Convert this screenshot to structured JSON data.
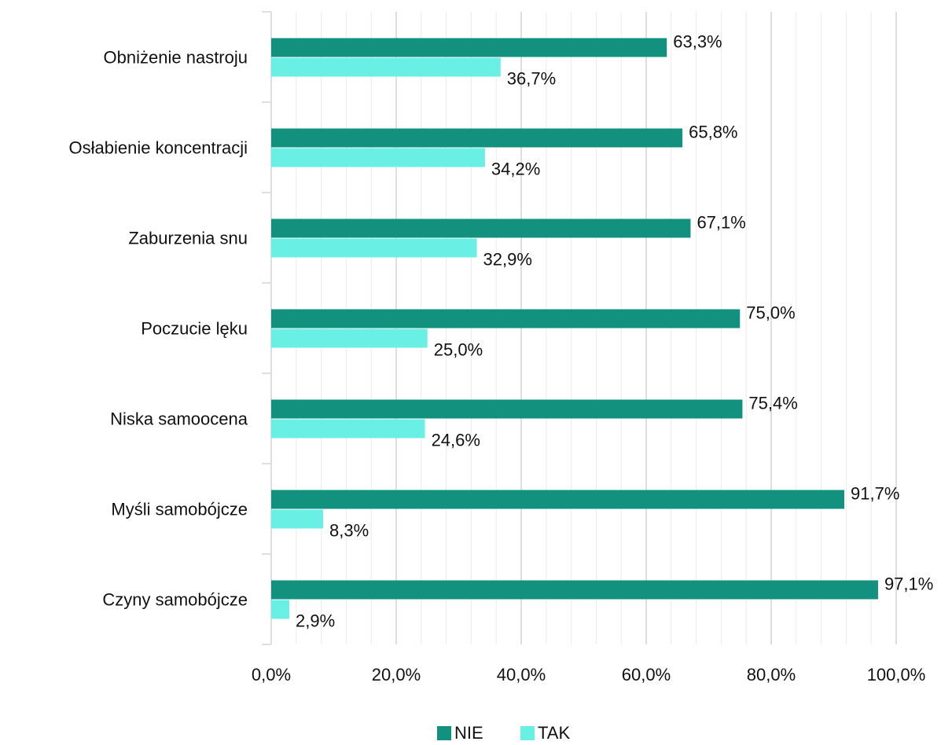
{
  "chart_data": {
    "type": "hbar",
    "categories": [
      "Obniżenie nastroju",
      "Osłabienie koncentracji",
      "Zaburzenia snu",
      "Poczucie lęku",
      "Niska samoocena",
      "Myśli samobójcze",
      "Czyny samobójcze"
    ],
    "series": [
      {
        "name": "NIE",
        "color": "#12917f",
        "values": [
          63.3,
          65.8,
          67.1,
          75.0,
          75.4,
          91.7,
          97.1
        ],
        "value_labels": [
          "63,3%",
          "65,8%",
          "67,1%",
          "75,0%",
          "75,4%",
          "91,7%",
          "97,1%"
        ]
      },
      {
        "name": "TAK",
        "color": "#6aefe4",
        "values": [
          36.7,
          34.2,
          32.9,
          25.0,
          24.6,
          8.3,
          2.9
        ],
        "value_labels": [
          "36,7%",
          "34,2%",
          "32,9%",
          "25,0%",
          "24,6%",
          "8,3%",
          "2,9%"
        ]
      }
    ],
    "xlim": [
      0,
      100
    ],
    "xticks": [
      {
        "value": 0,
        "label": "0,0%"
      },
      {
        "value": 20,
        "label": "20,0%"
      },
      {
        "value": 40,
        "label": "40,0%"
      },
      {
        "value": 60,
        "label": "60,0%"
      },
      {
        "value": 80,
        "label": "80,0%"
      },
      {
        "value": 100,
        "label": "100,0%"
      }
    ],
    "xminorticks": [
      4,
      8,
      12,
      16,
      24,
      28,
      32,
      36,
      44,
      48,
      52,
      56,
      64,
      68,
      72,
      76,
      84,
      88,
      92,
      96
    ],
    "grid": true,
    "legend": "bottom"
  }
}
